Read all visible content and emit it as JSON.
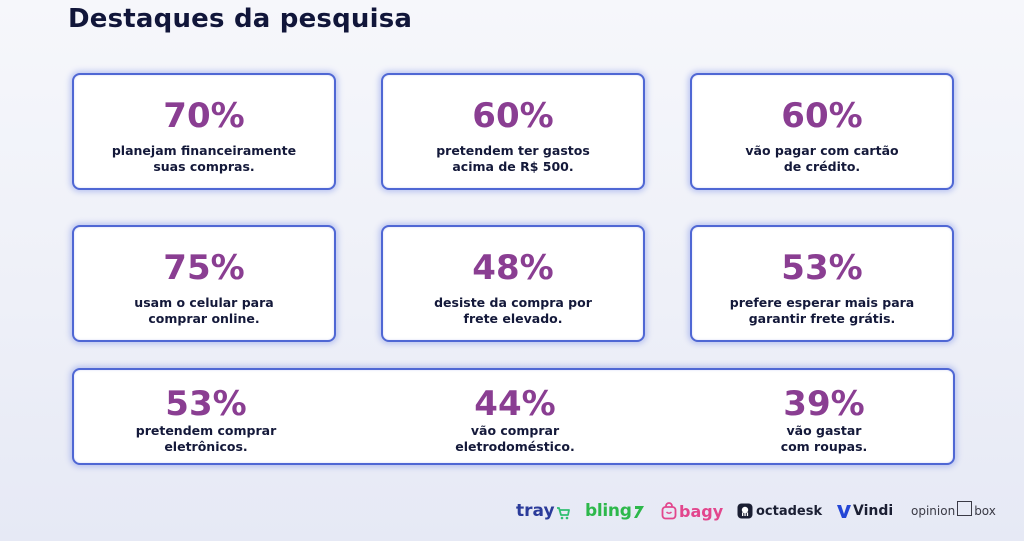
{
  "title": "Destaques da pesquisa",
  "cards": [
    {
      "stat": "70%",
      "line1": "planejam financeiramente",
      "line2": "suas compras."
    },
    {
      "stat": "60%",
      "line1": "pretendem ter gastos",
      "line2": "acima de R$ 500."
    },
    {
      "stat": "60%",
      "line1": "vão pagar com cartão",
      "line2": "de crédito."
    },
    {
      "stat": "75%",
      "line1": "usam o celular para",
      "line2": "comprar online."
    },
    {
      "stat": "48%",
      "line1": "desiste da compra por",
      "line2": "frete elevado."
    },
    {
      "stat": "53%",
      "line1": "prefere esperar mais para",
      "line2": "garantir frete grátis."
    }
  ],
  "wide_card": [
    {
      "stat": "53%",
      "line1": "pretendem comprar",
      "line2": "eletrônicos."
    },
    {
      "stat": "44%",
      "line1": "vão comprar",
      "line2": "eletrodoméstico."
    },
    {
      "stat": "39%",
      "line1": "vão gastar",
      "line2": "com roupas."
    }
  ],
  "logos": {
    "tray": "tray",
    "bling": "bling",
    "bagy": "bagy",
    "octadesk": "octadesk",
    "vindi": "Vindi",
    "opinion": "opinion",
    "box": "box"
  },
  "colors": {
    "title": "#11163a",
    "stat": "#8a3e92",
    "card_border": "#4f67d4",
    "tray_blue": "#2b5fd9",
    "tray_green": "#2fbf71",
    "bling_green": "#2db84b",
    "bagy_pink": "#e2468d",
    "octadesk_dark": "#1b1f33",
    "vindi_blue": "#2446d6"
  }
}
